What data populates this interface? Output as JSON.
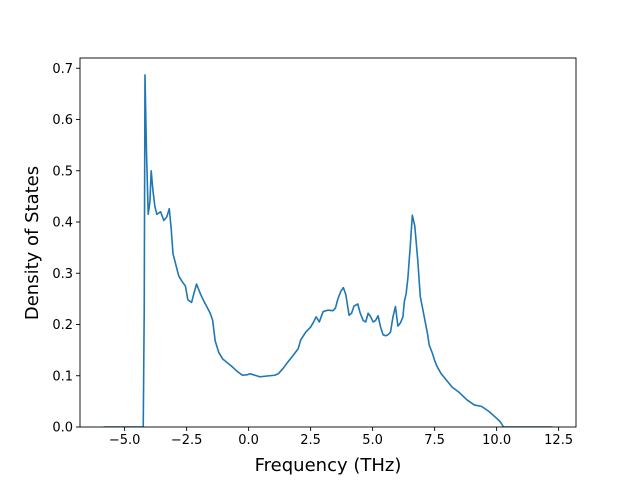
{
  "chart_data": {
    "type": "line",
    "xlabel": "Frequency (THz)",
    "ylabel": "Density of States",
    "xlim": [
      -6.8,
      13.2
    ],
    "ylim": [
      0.0,
      0.72
    ],
    "xticks": [
      -5.0,
      -2.5,
      0.0,
      2.5,
      5.0,
      7.5,
      10.0,
      12.5
    ],
    "xtick_labels": [
      "−5.0",
      "−2.5",
      "0.0",
      "2.5",
      "5.0",
      "7.5",
      "10.0",
      "12.5"
    ],
    "yticks": [
      0.0,
      0.1,
      0.2,
      0.3,
      0.4,
      0.5,
      0.6,
      0.7
    ],
    "ytick_labels": [
      "0.0",
      "0.1",
      "0.2",
      "0.3",
      "0.4",
      "0.5",
      "0.6",
      "0.7"
    ],
    "grid": false,
    "line_color": "#1f77b4",
    "series": [
      {
        "x": [
          -5.85,
          -4.25,
          -4.21,
          -4.18,
          -4.12,
          -4.05,
          -3.98,
          -3.93,
          -3.86,
          -3.78,
          -3.7,
          -3.55,
          -3.42,
          -3.3,
          -3.2,
          -3.12,
          -3.05,
          -2.98,
          -2.9,
          -2.82,
          -2.7,
          -2.55,
          -2.45,
          -2.3,
          -2.2,
          -2.1,
          -1.98,
          -1.9,
          -1.8,
          -1.7,
          -1.55,
          -1.45,
          -1.35,
          -1.2,
          -1.05,
          -0.85,
          -0.65,
          -0.45,
          -0.25,
          -0.05,
          0.05,
          0.25,
          0.45,
          0.65,
          0.85,
          1.05,
          1.2,
          1.4,
          1.6,
          1.8,
          2.0,
          2.1,
          2.3,
          2.5,
          2.62,
          2.72,
          2.85,
          3.0,
          3.2,
          3.4,
          3.5,
          3.6,
          3.72,
          3.82,
          3.92,
          4.05,
          4.15,
          4.25,
          4.4,
          4.5,
          4.62,
          4.72,
          4.82,
          4.92,
          5.02,
          5.12,
          5.22,
          5.32,
          5.42,
          5.52,
          5.62,
          5.72,
          5.82,
          5.92,
          6.02,
          6.12,
          6.22,
          6.28,
          6.35,
          6.42,
          6.52,
          6.6,
          6.7,
          6.82,
          6.92,
          7.02,
          7.12,
          7.22,
          7.28,
          7.4,
          7.5,
          7.6,
          7.75,
          7.95,
          8.2,
          8.5,
          8.8,
          9.1,
          9.4,
          9.7,
          10.0,
          10.15,
          10.28,
          10.4,
          10.52,
          10.62,
          10.72,
          10.82,
          11.0,
          12.25
        ],
        "y": [
          0.0,
          0.0,
          0.23,
          0.687,
          0.54,
          0.415,
          0.44,
          0.5,
          0.462,
          0.43,
          0.415,
          0.42,
          0.403,
          0.41,
          0.426,
          0.385,
          0.338,
          0.325,
          0.31,
          0.295,
          0.285,
          0.275,
          0.248,
          0.243,
          0.262,
          0.279,
          0.264,
          0.255,
          0.245,
          0.236,
          0.222,
          0.208,
          0.168,
          0.145,
          0.133,
          0.125,
          0.117,
          0.108,
          0.101,
          0.102,
          0.104,
          0.101,
          0.098,
          0.099,
          0.1,
          0.101,
          0.104,
          0.115,
          0.128,
          0.14,
          0.153,
          0.17,
          0.185,
          0.195,
          0.205,
          0.215,
          0.205,
          0.225,
          0.228,
          0.227,
          0.232,
          0.25,
          0.265,
          0.272,
          0.258,
          0.218,
          0.222,
          0.236,
          0.24,
          0.222,
          0.208,
          0.205,
          0.222,
          0.215,
          0.205,
          0.208,
          0.217,
          0.195,
          0.18,
          0.178,
          0.18,
          0.185,
          0.215,
          0.235,
          0.197,
          0.203,
          0.215,
          0.245,
          0.26,
          0.29,
          0.355,
          0.413,
          0.392,
          0.325,
          0.255,
          0.23,
          0.205,
          0.18,
          0.16,
          0.145,
          0.13,
          0.118,
          0.105,
          0.093,
          0.078,
          0.067,
          0.053,
          0.043,
          0.04,
          0.03,
          0.017,
          0.01,
          0.0,
          0.0,
          0.0,
          0.0,
          0.0,
          0.0,
          0.0,
          0.0
        ]
      }
    ]
  }
}
